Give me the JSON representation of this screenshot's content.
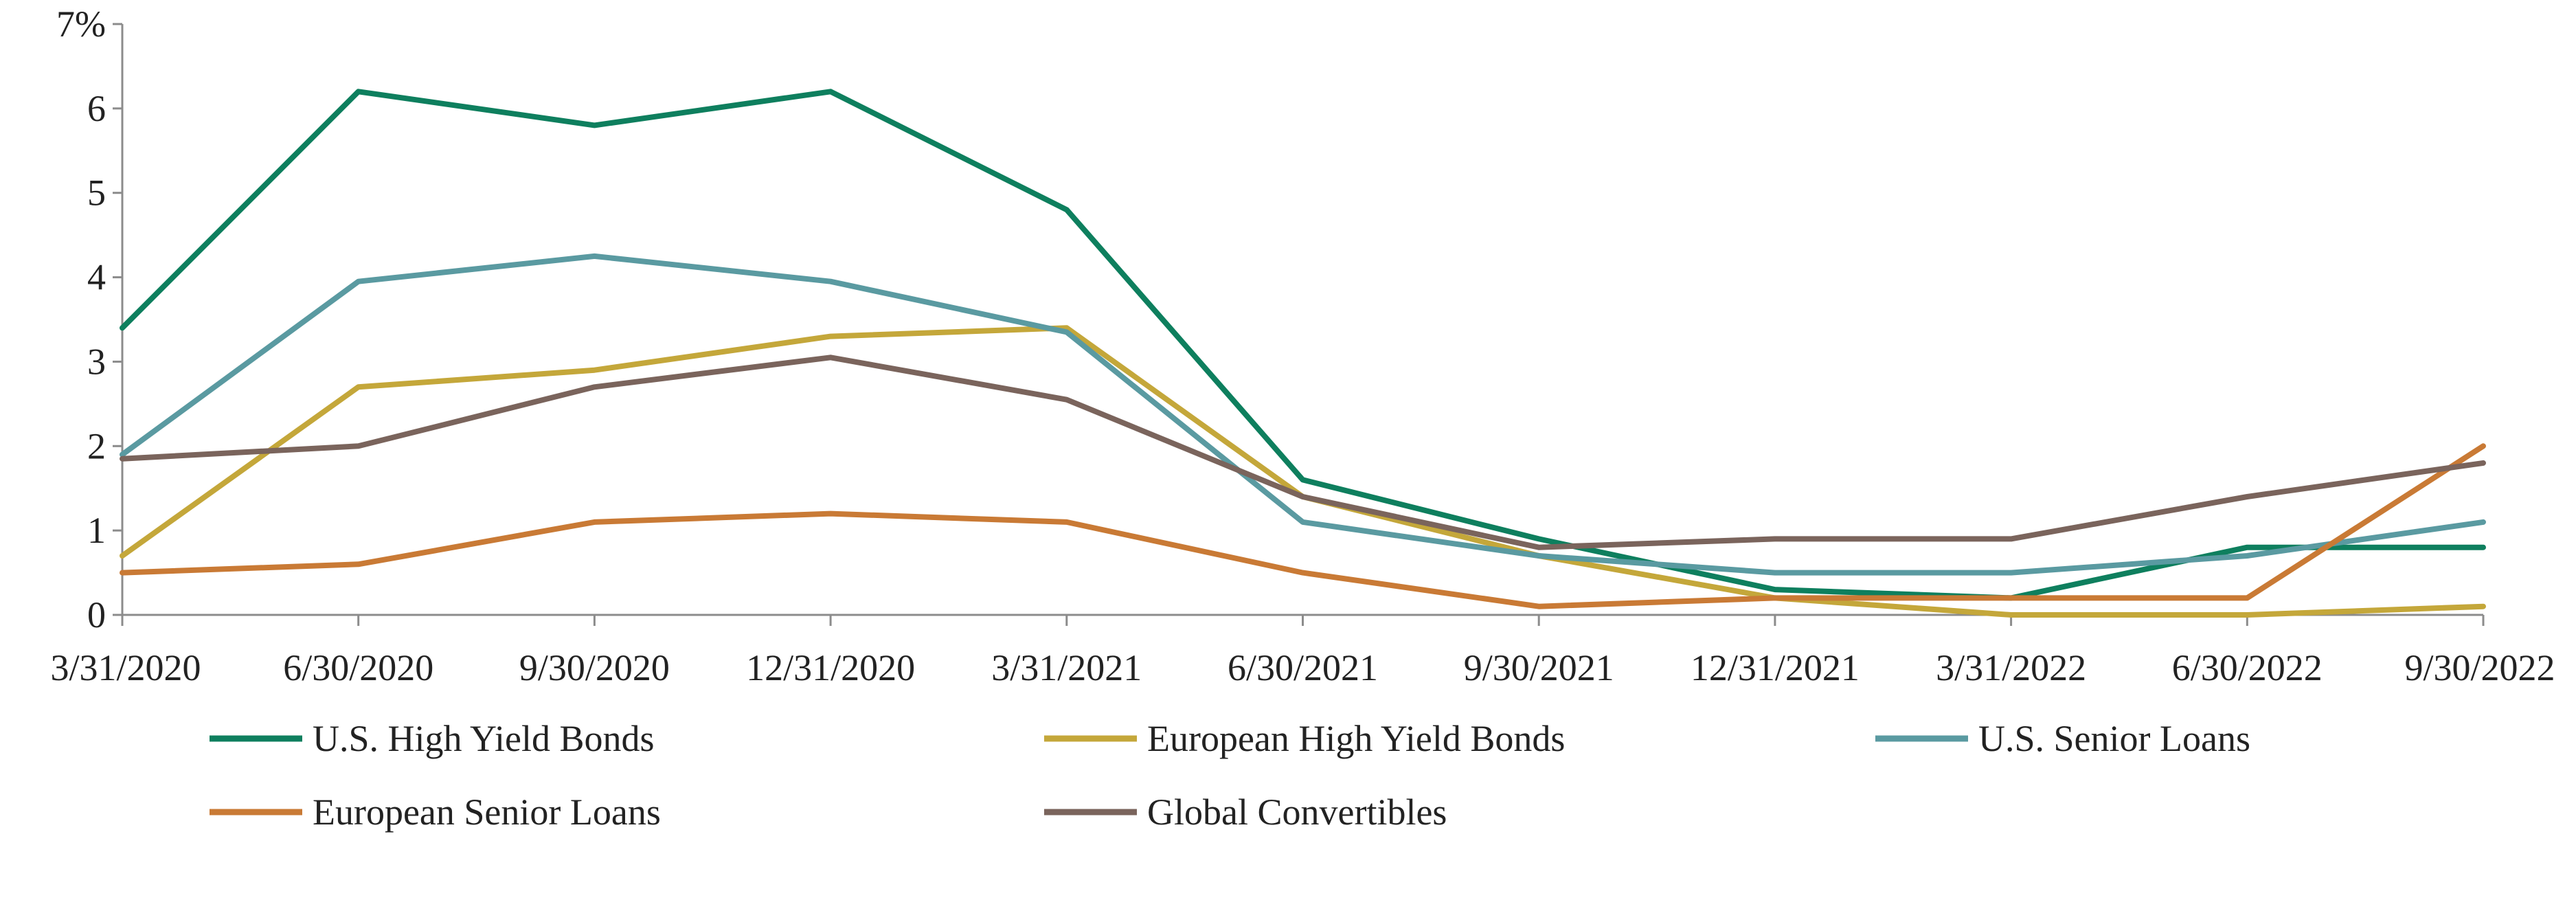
{
  "chart_data": {
    "type": "line",
    "title": "",
    "xlabel": "",
    "ylabel": "",
    "categories": [
      "3/31/2020",
      "6/30/2020",
      "9/30/2020",
      "12/31/2020",
      "3/31/2021",
      "6/30/2021",
      "9/30/2021",
      "12/31/2021",
      "3/31/2022",
      "6/30/2022",
      "9/30/2022"
    ],
    "ylim": [
      0,
      7
    ],
    "yticks": [
      "0",
      "1",
      "2",
      "3",
      "4",
      "5",
      "6",
      "7%"
    ],
    "grid": false,
    "legend_position": "bottom",
    "series": [
      {
        "name": "U.S. High Yield Bonds",
        "color": "#0e7f5e",
        "values": [
          3.4,
          6.2,
          5.8,
          6.2,
          4.8,
          1.6,
          0.9,
          0.3,
          0.2,
          0.8,
          0.8
        ]
      },
      {
        "name": "European High Yield Bonds",
        "color": "#c4a73a",
        "values": [
          0.7,
          2.7,
          2.9,
          3.3,
          3.4,
          1.4,
          0.7,
          0.2,
          0.0,
          0.0,
          0.1
        ]
      },
      {
        "name": "U.S. Senior Loans",
        "color": "#5a9aa1",
        "values": [
          1.9,
          3.95,
          4.25,
          3.95,
          3.35,
          1.1,
          0.7,
          0.5,
          0.5,
          0.7,
          1.1
        ]
      },
      {
        "name": "European Senior Loans",
        "color": "#c97a35",
        "values": [
          0.5,
          0.6,
          1.1,
          1.2,
          1.1,
          0.5,
          0.1,
          0.2,
          0.2,
          0.2,
          2.0
        ]
      },
      {
        "name": "Global Convertibles",
        "color": "#7a645c",
        "values": [
          1.85,
          2.0,
          2.7,
          3.05,
          2.55,
          1.4,
          0.8,
          0.9,
          0.9,
          1.4,
          1.8
        ]
      }
    ]
  }
}
